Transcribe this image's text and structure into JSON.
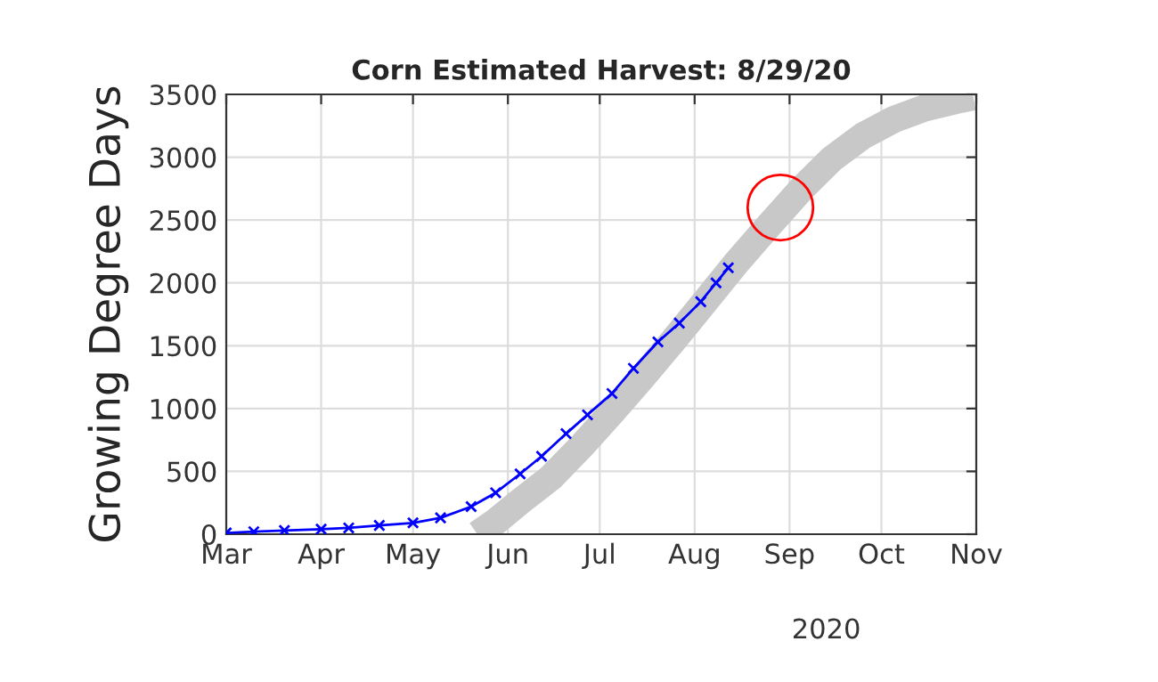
{
  "chart_data": {
    "type": "line",
    "title": "Corn Estimated Harvest: 8/29/20",
    "ylabel": "Growing Degree Days",
    "xlim": [
      "2020-03-01",
      "2020-11-01"
    ],
    "xticks": [
      {
        "value": "2020-03-01",
        "label": "Mar"
      },
      {
        "value": "2020-04-01",
        "label": "Apr"
      },
      {
        "value": "2020-05-01",
        "label": "May"
      },
      {
        "value": "2020-06-01",
        "label": "Jun"
      },
      {
        "value": "2020-07-01",
        "label": "Jul"
      },
      {
        "value": "2020-08-01",
        "label": "Aug"
      },
      {
        "value": "2020-09-01",
        "label": "Sep"
      },
      {
        "value": "2020-10-01",
        "label": "Oct"
      },
      {
        "value": "2020-11-01",
        "label": "Nov"
      }
    ],
    "ylim": [
      0,
      3500
    ],
    "yticks": [
      0,
      500,
      1000,
      1500,
      2000,
      2500,
      3000,
      3500
    ],
    "grid": true,
    "annotations": [
      "2020"
    ],
    "series": [
      {
        "color": "#c8c8c8",
        "marker": "none",
        "x": [
          "2020-05-22",
          "2020-05-28",
          "2020-06-05",
          "2020-06-15",
          "2020-06-25",
          "2020-07-05",
          "2020-07-15",
          "2020-07-25",
          "2020-08-05",
          "2020-08-15",
          "2020-08-25",
          "2020-09-05",
          "2020-09-15",
          "2020-09-25",
          "2020-10-05",
          "2020-10-15",
          "2020-10-25",
          "2020-10-31"
        ],
        "values": [
          0,
          100,
          260,
          450,
          700,
          970,
          1250,
          1540,
          1870,
          2170,
          2450,
          2750,
          2990,
          3170,
          3300,
          3390,
          3450,
          3480
        ]
      },
      {
        "color": "#0000ff",
        "marker": "cross",
        "x": [
          "2020-03-01",
          "2020-03-10",
          "2020-03-20",
          "2020-04-01",
          "2020-04-10",
          "2020-04-20",
          "2020-05-01",
          "2020-05-10",
          "2020-05-20",
          "2020-05-28",
          "2020-06-05",
          "2020-06-12",
          "2020-06-20",
          "2020-06-27",
          "2020-07-05",
          "2020-07-12",
          "2020-07-20",
          "2020-07-27",
          "2020-08-03",
          "2020-08-08",
          "2020-08-12"
        ],
        "values": [
          10,
          20,
          30,
          40,
          50,
          70,
          90,
          130,
          220,
          330,
          480,
          620,
          800,
          950,
          1120,
          1320,
          1530,
          1680,
          1850,
          2000,
          2120
        ]
      },
      {
        "type": "scatter",
        "color": "#ff0000",
        "marker": "circle",
        "x": [
          "2020-08-29"
        ],
        "values": [
          2600
        ]
      }
    ]
  }
}
